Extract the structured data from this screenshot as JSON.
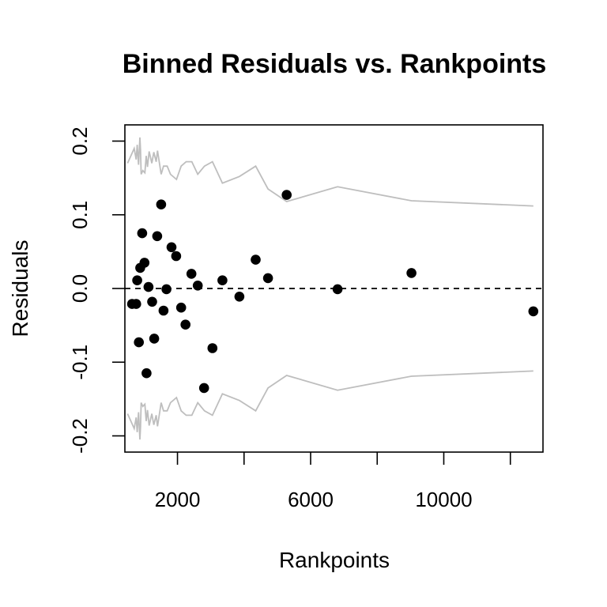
{
  "chart_data": {
    "type": "scatter",
    "title": "Binned Residuals vs. Rankpoints",
    "xlabel": "Rankpoints",
    "ylabel": "Residuals",
    "xlim": [
      420,
      12980
    ],
    "ylim": [
      -0.222,
      0.222
    ],
    "x_ticks": [
      2000,
      4000,
      6000,
      8000,
      10000,
      12000
    ],
    "x_tick_labels": [
      "2000",
      "",
      "6000",
      "",
      "10000",
      ""
    ],
    "y_ticks": [
      -0.2,
      -0.1,
      0.0,
      0.1,
      0.2
    ],
    "y_tick_labels": [
      "-0.2",
      "-0.1",
      "0.0",
      "0.1",
      "0.2"
    ],
    "reference_line": {
      "y": 0,
      "style": "dashed"
    },
    "colors": {
      "points": "#000000",
      "bounds": "#bebebe",
      "reference": "#000000"
    },
    "points": [
      {
        "x": 635,
        "y": -0.021
      },
      {
        "x": 760,
        "y": -0.021
      },
      {
        "x": 790,
        "y": 0.011
      },
      {
        "x": 840,
        "y": -0.073
      },
      {
        "x": 880,
        "y": 0.028
      },
      {
        "x": 940,
        "y": 0.075
      },
      {
        "x": 1010,
        "y": 0.035
      },
      {
        "x": 1070,
        "y": -0.115
      },
      {
        "x": 1130,
        "y": 0.002
      },
      {
        "x": 1240,
        "y": -0.018
      },
      {
        "x": 1300,
        "y": -0.068
      },
      {
        "x": 1390,
        "y": 0.071
      },
      {
        "x": 1510,
        "y": 0.114
      },
      {
        "x": 1580,
        "y": -0.03
      },
      {
        "x": 1670,
        "y": -0.001
      },
      {
        "x": 1820,
        "y": 0.056
      },
      {
        "x": 1960,
        "y": 0.044
      },
      {
        "x": 2110,
        "y": -0.026
      },
      {
        "x": 2240,
        "y": -0.049
      },
      {
        "x": 2420,
        "y": 0.02
      },
      {
        "x": 2610,
        "y": 0.004
      },
      {
        "x": 2800,
        "y": -0.135
      },
      {
        "x": 3050,
        "y": -0.081
      },
      {
        "x": 3350,
        "y": 0.011
      },
      {
        "x": 3860,
        "y": -0.011
      },
      {
        "x": 4350,
        "y": 0.039
      },
      {
        "x": 4720,
        "y": 0.014
      },
      {
        "x": 5280,
        "y": 0.127
      },
      {
        "x": 6810,
        "y": -0.001
      },
      {
        "x": 9030,
        "y": 0.021
      },
      {
        "x": 12690,
        "y": -0.031
      }
    ],
    "upper_bound": {
      "x": [
        500,
        700,
        760,
        790,
        830,
        870,
        890,
        910,
        960,
        1020,
        1060,
        1100,
        1150,
        1230,
        1290,
        1360,
        1400,
        1510,
        1580,
        1690,
        1790,
        1970,
        2110,
        2260,
        2430,
        2610,
        2810,
        3050,
        3350,
        3860,
        4350,
        4720,
        5280,
        6810,
        9030,
        12690
      ],
      "y": [
        0.17,
        0.19,
        0.175,
        0.195,
        0.168,
        0.205,
        0.188,
        0.155,
        0.16,
        0.157,
        0.18,
        0.165,
        0.186,
        0.17,
        0.185,
        0.172,
        0.187,
        0.155,
        0.166,
        0.166,
        0.155,
        0.148,
        0.166,
        0.172,
        0.172,
        0.155,
        0.166,
        0.172,
        0.143,
        0.152,
        0.166,
        0.135,
        0.118,
        0.138,
        0.119,
        0.112
      ]
    },
    "lower_bound": {
      "x": [
        500,
        700,
        760,
        790,
        830,
        870,
        890,
        910,
        960,
        1020,
        1060,
        1100,
        1150,
        1230,
        1290,
        1360,
        1400,
        1510,
        1580,
        1690,
        1790,
        1970,
        2110,
        2260,
        2430,
        2610,
        2810,
        3050,
        3350,
        3860,
        4350,
        4720,
        5280,
        6810,
        9030,
        12690
      ],
      "y": [
        -0.17,
        -0.19,
        -0.175,
        -0.195,
        -0.168,
        -0.205,
        -0.188,
        -0.155,
        -0.16,
        -0.157,
        -0.18,
        -0.165,
        -0.186,
        -0.17,
        -0.185,
        -0.172,
        -0.187,
        -0.155,
        -0.166,
        -0.166,
        -0.155,
        -0.148,
        -0.166,
        -0.172,
        -0.172,
        -0.155,
        -0.166,
        -0.172,
        -0.143,
        -0.152,
        -0.166,
        -0.135,
        -0.118,
        -0.138,
        -0.119,
        -0.112
      ]
    }
  }
}
